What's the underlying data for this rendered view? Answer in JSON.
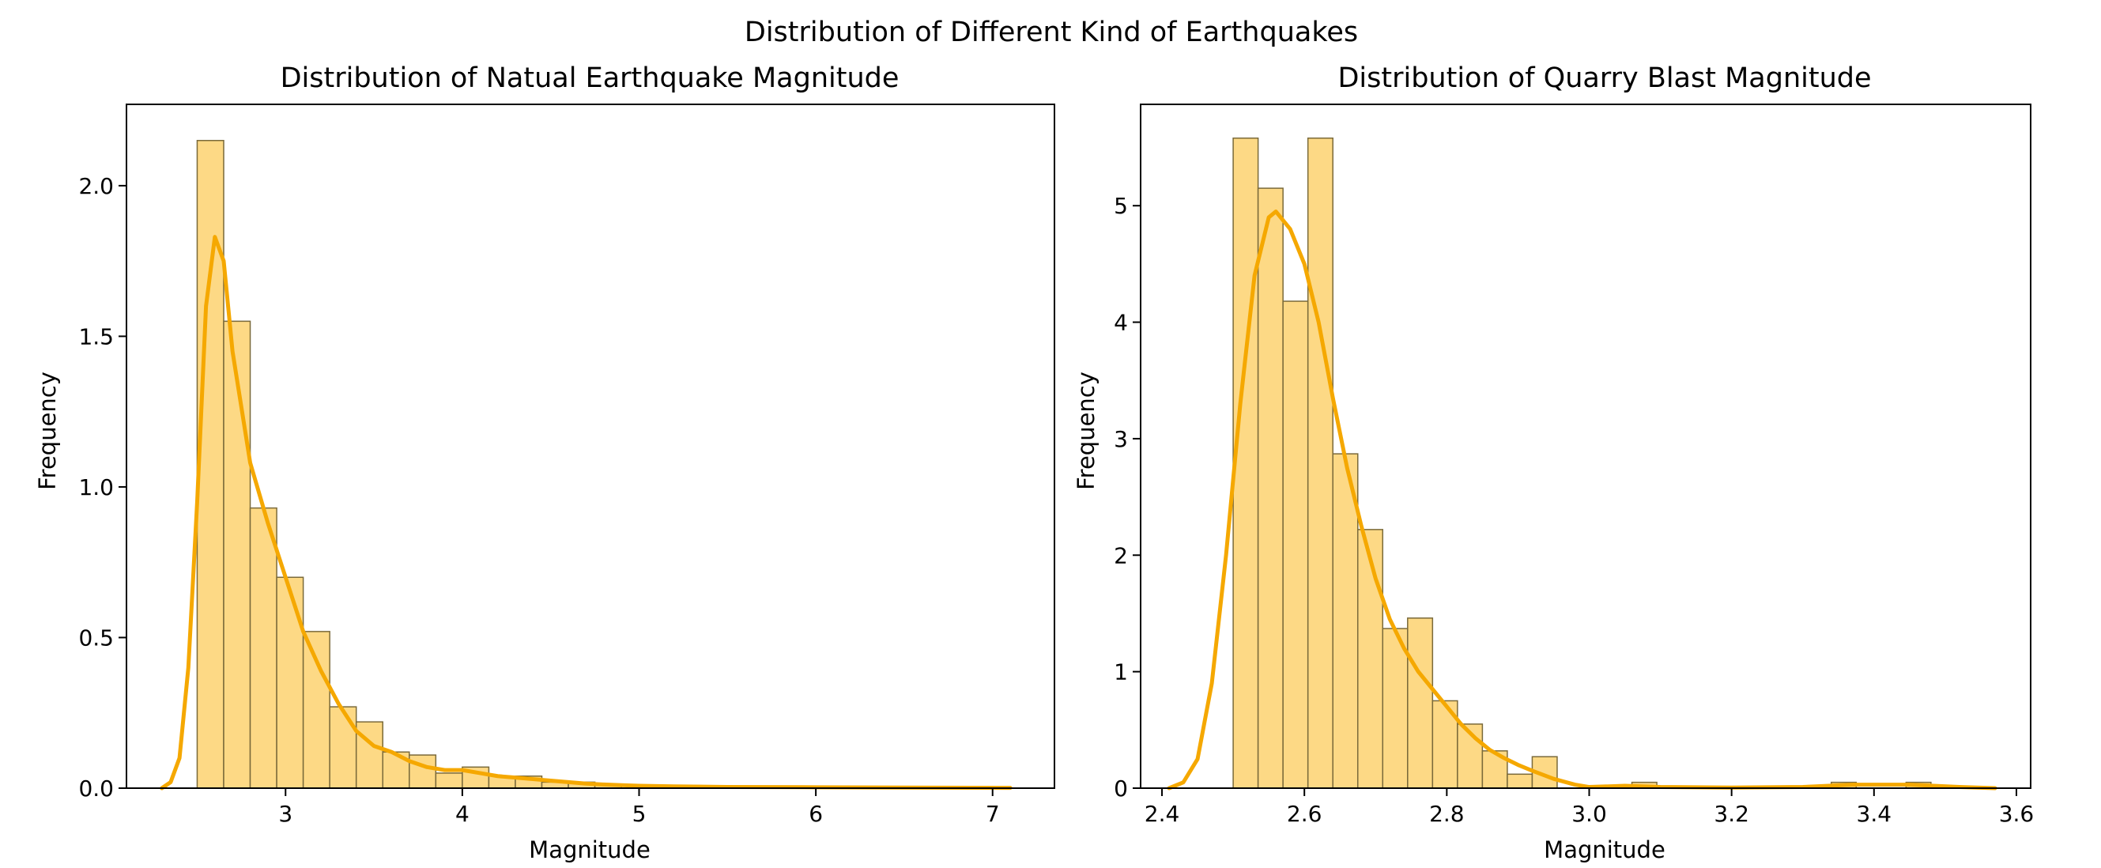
{
  "figure": {
    "suptitle": "Distribution of Different Kind of Earthquakes"
  },
  "colors": {
    "bar_fill": "#fdd985",
    "bar_edge": "#7a6a3a",
    "kde": "#f5a800",
    "axes": "#000000"
  },
  "chart_data": [
    {
      "type": "bar",
      "kind": "histogram-with-kde",
      "title": "Distribution of Natual Earthquake Magnitude",
      "xlabel": "Magnitude",
      "ylabel": "Frequency",
      "xlim": [
        2.1,
        7.35
      ],
      "ylim": [
        0,
        2.27
      ],
      "xticks": [
        3,
        4,
        5,
        6,
        7
      ],
      "yticks": [
        0.0,
        0.5,
        1.0,
        1.5,
        2.0
      ],
      "ytick_labels": [
        "0.0",
        "0.5",
        "1.0",
        "1.5",
        "2.0"
      ],
      "grid": false,
      "bins": [
        {
          "x0": 2.5,
          "x1": 2.65,
          "value": 2.15
        },
        {
          "x0": 2.65,
          "x1": 2.8,
          "value": 1.55
        },
        {
          "x0": 2.8,
          "x1": 2.95,
          "value": 0.93
        },
        {
          "x0": 2.95,
          "x1": 3.1,
          "value": 0.7
        },
        {
          "x0": 3.1,
          "x1": 3.25,
          "value": 0.52
        },
        {
          "x0": 3.25,
          "x1": 3.4,
          "value": 0.27
        },
        {
          "x0": 3.4,
          "x1": 3.55,
          "value": 0.22
        },
        {
          "x0": 3.55,
          "x1": 3.7,
          "value": 0.12
        },
        {
          "x0": 3.7,
          "x1": 3.85,
          "value": 0.11
        },
        {
          "x0": 3.85,
          "x1": 4.0,
          "value": 0.05
        },
        {
          "x0": 4.0,
          "x1": 4.15,
          "value": 0.07
        },
        {
          "x0": 4.15,
          "x1": 4.3,
          "value": 0.04
        },
        {
          "x0": 4.3,
          "x1": 4.45,
          "value": 0.04
        },
        {
          "x0": 4.45,
          "x1": 4.6,
          "value": 0.02
        },
        {
          "x0": 4.6,
          "x1": 4.75,
          "value": 0.02
        },
        {
          "x0": 4.75,
          "x1": 4.9,
          "value": 0.01
        }
      ],
      "kde": {
        "x": [
          2.3,
          2.35,
          2.4,
          2.45,
          2.5,
          2.55,
          2.6,
          2.65,
          2.7,
          2.8,
          2.9,
          3.0,
          3.1,
          3.2,
          3.3,
          3.4,
          3.5,
          3.6,
          3.7,
          3.8,
          3.9,
          4.0,
          4.1,
          4.2,
          4.3,
          4.4,
          4.5,
          4.6,
          4.7,
          4.8,
          4.9,
          5.0,
          5.2,
          5.5,
          6.0,
          6.5,
          7.1
        ],
        "y": [
          0.0,
          0.02,
          0.1,
          0.4,
          0.95,
          1.6,
          1.83,
          1.75,
          1.45,
          1.08,
          0.88,
          0.7,
          0.52,
          0.39,
          0.28,
          0.19,
          0.14,
          0.12,
          0.09,
          0.07,
          0.06,
          0.06,
          0.05,
          0.04,
          0.035,
          0.03,
          0.025,
          0.02,
          0.015,
          0.012,
          0.01,
          0.008,
          0.006,
          0.004,
          0.003,
          0.002,
          0.001
        ]
      }
    },
    {
      "type": "bar",
      "kind": "histogram-with-kde",
      "title": "Distribution of Quarry Blast Magnitude",
      "xlabel": "Magnitude",
      "ylabel": "Frequency",
      "xlim": [
        2.37,
        3.62
      ],
      "ylim": [
        0,
        5.87
      ],
      "xticks": [
        2.4,
        2.6,
        2.8,
        3.0,
        3.2,
        3.4,
        3.6
      ],
      "xtick_labels": [
        "2.4",
        "2.6",
        "2.8",
        "3.0",
        "3.2",
        "3.4",
        "3.6"
      ],
      "yticks": [
        0,
        1,
        2,
        3,
        4,
        5
      ],
      "ytick_labels": [
        "0",
        "1",
        "2",
        "3",
        "4",
        "5"
      ],
      "grid": false,
      "bins": [
        {
          "x0": 2.5,
          "x1": 2.535,
          "value": 5.58
        },
        {
          "x0": 2.535,
          "x1": 2.57,
          "value": 5.15
        },
        {
          "x0": 2.57,
          "x1": 2.605,
          "value": 4.18
        },
        {
          "x0": 2.605,
          "x1": 2.64,
          "value": 5.58
        },
        {
          "x0": 2.64,
          "x1": 2.675,
          "value": 2.87
        },
        {
          "x0": 2.675,
          "x1": 2.71,
          "value": 2.22
        },
        {
          "x0": 2.71,
          "x1": 2.745,
          "value": 1.37
        },
        {
          "x0": 2.745,
          "x1": 2.78,
          "value": 1.46
        },
        {
          "x0": 2.78,
          "x1": 2.815,
          "value": 0.75
        },
        {
          "x0": 2.815,
          "x1": 2.85,
          "value": 0.55
        },
        {
          "x0": 2.85,
          "x1": 2.885,
          "value": 0.32
        },
        {
          "x0": 2.885,
          "x1": 2.92,
          "value": 0.12
        },
        {
          "x0": 2.92,
          "x1": 2.955,
          "value": 0.27
        },
        {
          "x0": 3.06,
          "x1": 3.095,
          "value": 0.05
        },
        {
          "x0": 3.34,
          "x1": 3.375,
          "value": 0.05
        },
        {
          "x0": 3.445,
          "x1": 3.48,
          "value": 0.05
        }
      ],
      "kde": {
        "x": [
          2.41,
          2.43,
          2.45,
          2.47,
          2.49,
          2.51,
          2.53,
          2.55,
          2.56,
          2.58,
          2.6,
          2.62,
          2.64,
          2.66,
          2.68,
          2.7,
          2.72,
          2.74,
          2.76,
          2.78,
          2.8,
          2.82,
          2.84,
          2.86,
          2.88,
          2.9,
          2.92,
          2.95,
          2.98,
          3.0,
          3.05,
          3.1,
          3.2,
          3.3,
          3.37,
          3.45,
          3.52,
          3.57
        ],
        "y": [
          0.0,
          0.05,
          0.25,
          0.9,
          2.0,
          3.3,
          4.4,
          4.9,
          4.95,
          4.8,
          4.5,
          4.0,
          3.35,
          2.75,
          2.25,
          1.8,
          1.45,
          1.2,
          1.0,
          0.85,
          0.7,
          0.55,
          0.43,
          0.33,
          0.26,
          0.2,
          0.15,
          0.08,
          0.03,
          0.01,
          0.02,
          0.01,
          0.005,
          0.01,
          0.03,
          0.03,
          0.01,
          0.0
        ]
      }
    }
  ]
}
